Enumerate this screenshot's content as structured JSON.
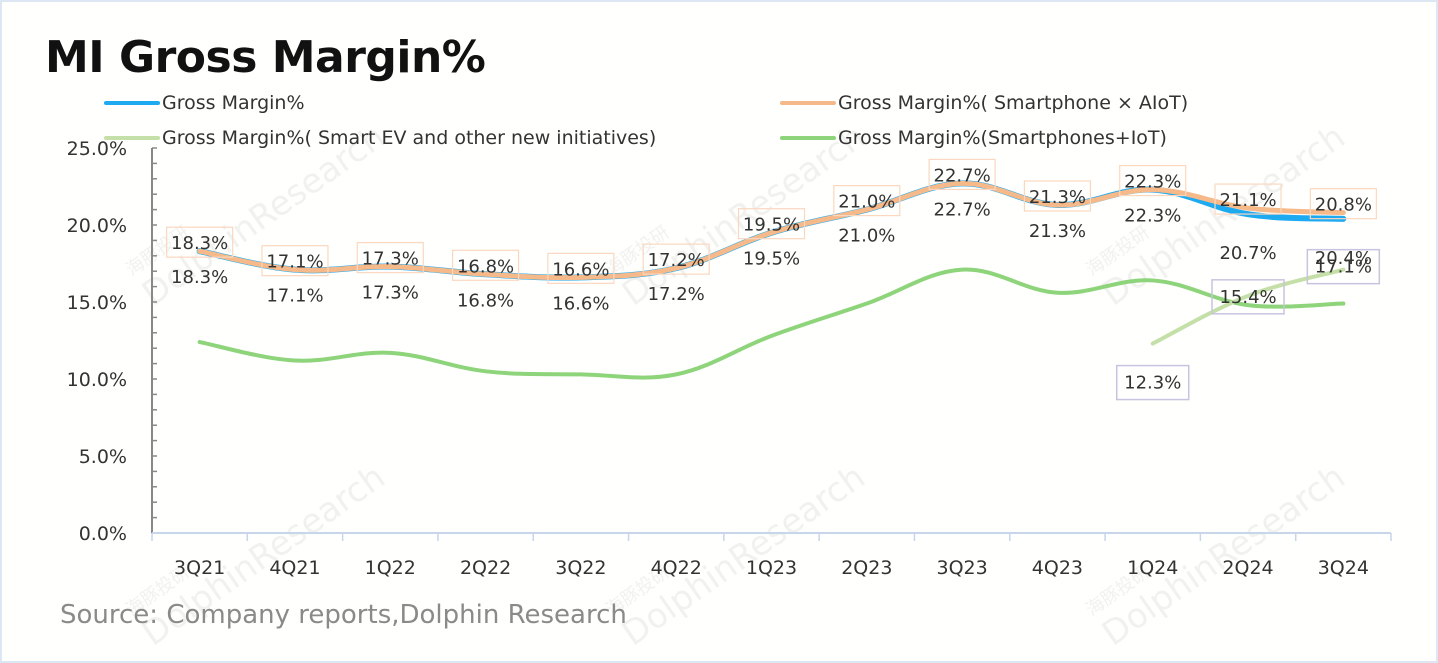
{
  "title": "MI Gross Margin%",
  "source": "Source: Company reports,Dolphin Research",
  "watermark": {
    "cn": "海豚投研",
    "en": "DolphinResearch"
  },
  "legend": [
    {
      "label": "Gross Margin%",
      "color": "#1eaaf1"
    },
    {
      "label": "Gross Margin%( Smartphone × AIoT)",
      "color": "#f6b98a"
    },
    {
      "label": "Gross Margin%( Smart EV and other new initiatives)",
      "color": "#c5dfa8"
    },
    {
      "label": "Gross Margin%(Smartphones+IoT)",
      "color": "#8ed47a"
    }
  ],
  "chart_data": {
    "type": "line",
    "title": "MI Gross Margin%",
    "xlabel": "",
    "ylabel": "",
    "categories": [
      "3Q21",
      "4Q21",
      "1Q22",
      "2Q22",
      "3Q22",
      "4Q22",
      "1Q23",
      "2Q23",
      "3Q23",
      "4Q23",
      "1Q24",
      "2Q24",
      "3Q24"
    ],
    "ylim": [
      0,
      25
    ],
    "yticks": [
      "0.0%",
      "5.0%",
      "10.0%",
      "15.0%",
      "20.0%",
      "25.0%"
    ],
    "ytick_values": [
      0,
      5,
      10,
      15,
      20,
      25
    ],
    "grid": false,
    "legend_position": "top",
    "series": [
      {
        "name": "Gross Margin%",
        "color": "#1eaaf1",
        "values": [
          18.3,
          17.1,
          17.3,
          16.8,
          16.6,
          17.2,
          19.5,
          21.0,
          22.7,
          21.3,
          22.3,
          20.7,
          20.4
        ],
        "labels": [
          "18.3%",
          "17.1%",
          "17.3%",
          "16.8%",
          "16.6%",
          "17.2%",
          "19.5%",
          "21.0%",
          "22.7%",
          "21.3%",
          "22.3%",
          "20.7%",
          "20.4%"
        ],
        "label_position": "below"
      },
      {
        "name": "Gross Margin%( Smartphone × AIoT)",
        "color": "#f6b98a",
        "values": [
          18.3,
          17.1,
          17.3,
          16.8,
          16.6,
          17.2,
          19.5,
          21.0,
          22.7,
          21.3,
          22.3,
          21.1,
          20.8
        ],
        "labels": [
          "18.3%",
          "17.1%",
          "17.3%",
          "16.8%",
          "16.6%",
          "17.2%",
          "19.5%",
          "21.0%",
          "22.7%",
          "21.3%",
          "22.3%",
          "21.1%",
          "20.8%"
        ],
        "label_position": "above-boxed"
      },
      {
        "name": "Gross Margin%( Smart EV and other new initiatives)",
        "color": "#c5dfa8",
        "values": [
          null,
          null,
          null,
          null,
          null,
          null,
          null,
          null,
          null,
          null,
          12.3,
          15.4,
          17.1
        ],
        "labels": [
          null,
          null,
          null,
          null,
          null,
          null,
          null,
          null,
          null,
          null,
          "12.3%",
          "15.4%",
          "17.1%"
        ],
        "label_position": "boxed"
      },
      {
        "name": "Gross Margin%(Smartphones+IoT)",
        "color": "#8ed47a",
        "values": [
          12.4,
          11.2,
          11.7,
          10.5,
          10.3,
          10.3,
          12.8,
          14.9,
          17.1,
          15.6,
          16.4,
          14.8,
          14.9
        ],
        "labels": null,
        "label_position": "none"
      }
    ]
  }
}
